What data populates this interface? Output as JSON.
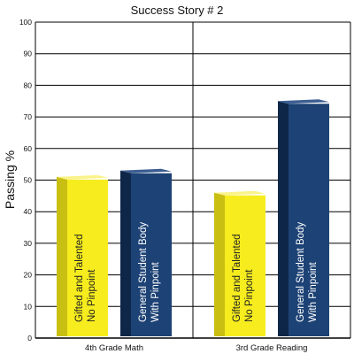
{
  "chart_data": {
    "type": "bar",
    "title": "Success Story # 2",
    "ylabel": "Passing %",
    "xlabel": "",
    "ylim": [
      0,
      100
    ],
    "yticks": [
      0,
      10,
      20,
      30,
      40,
      50,
      60,
      70,
      80,
      90,
      100
    ],
    "categories": [
      "4th Grade Math",
      "3rd Grade Reading"
    ],
    "series": [
      {
        "label_lines": [
          "Gifted and Talented",
          "No Pinpoint"
        ],
        "color": "#f6ec1e",
        "side_color": "#c8bf12",
        "top_color": "#faf38a",
        "text_color": "#222222",
        "values": [
          51,
          46
        ]
      },
      {
        "label_lines": [
          "General Student Body",
          "With Pinpoint"
        ],
        "color": "#1d4275",
        "side_color": "#0e2748",
        "top_color": "#3c5e92",
        "text_color": "#ffffff",
        "values": [
          53,
          75
        ]
      }
    ],
    "grid": true,
    "legend": "none"
  }
}
